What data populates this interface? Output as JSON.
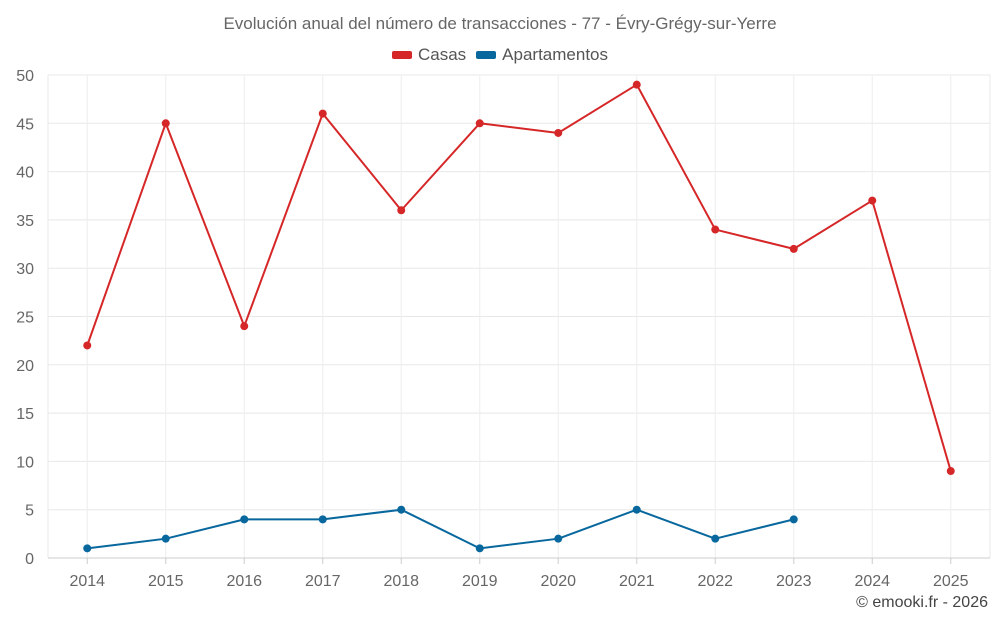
{
  "credit": "© emooki.fr - 2026",
  "chart_data": {
    "type": "line",
    "title": "Evolución anual del número de transacciones - 77 - Évry-Grégy-sur-Yerre",
    "xlabel": "",
    "ylabel": "",
    "categories": [
      "2014",
      "2015",
      "2016",
      "2017",
      "2018",
      "2019",
      "2020",
      "2021",
      "2022",
      "2023",
      "2024",
      "2025"
    ],
    "ylim": [
      0,
      50
    ],
    "yticks": [
      0,
      5,
      10,
      15,
      20,
      25,
      30,
      35,
      40,
      45,
      50
    ],
    "grid": true,
    "legend_position": "top-center",
    "series": [
      {
        "name": "Casas",
        "color": "#d62728",
        "values": [
          22,
          45,
          24,
          46,
          36,
          45,
          44,
          49,
          34,
          32,
          37,
          9
        ]
      },
      {
        "name": "Apartamentos",
        "color": "#08689e",
        "values": [
          1,
          2,
          4,
          4,
          5,
          1,
          2,
          5,
          2,
          4,
          null,
          null
        ]
      }
    ]
  }
}
